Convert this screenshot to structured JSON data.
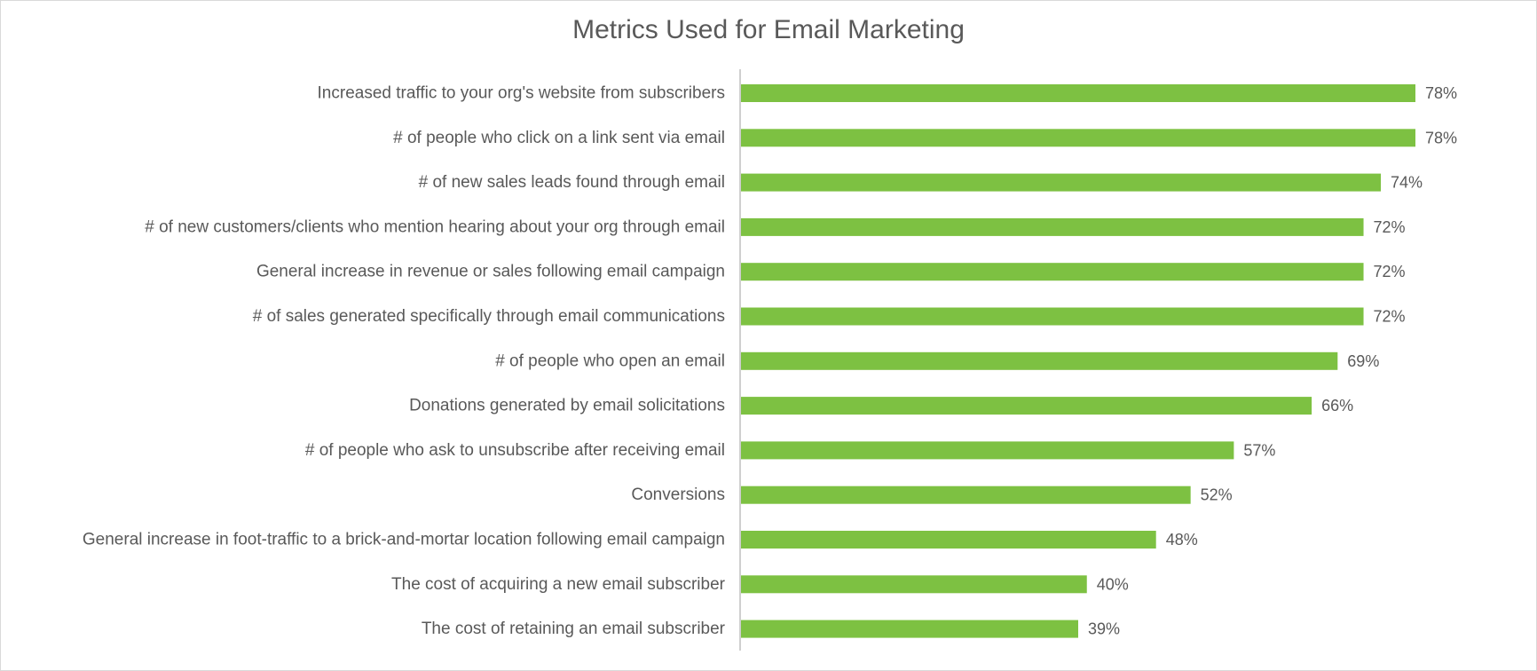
{
  "chart_data": {
    "type": "bar",
    "orientation": "horizontal",
    "title": "Metrics Used for Email Marketing",
    "categories": [
      "Increased traffic to your org's website from subscribers",
      "# of people who click on a link sent via email",
      "# of new sales leads found through email",
      "# of new customers/clients who mention hearing about your org through email",
      "General increase in revenue or sales following email campaign",
      "# of sales generated specifically through email communications",
      "# of people who open an email",
      "Donations generated by email solicitations",
      "# of people who ask to unsubscribe after receiving email",
      "Conversions",
      "General increase in foot-traffic to a brick-and-mortar location following email campaign",
      "The cost of acquiring a new email subscriber",
      "The cost of retaining an email subscriber"
    ],
    "values": [
      78,
      78,
      74,
      72,
      72,
      72,
      69,
      66,
      57,
      52,
      48,
      40,
      39
    ],
    "value_labels": [
      "78%",
      "78%",
      "74%",
      "72%",
      "72%",
      "72%",
      "69%",
      "66%",
      "57%",
      "52%",
      "48%",
      "40%",
      "39%"
    ],
    "xlim": [
      0,
      100
    ],
    "bar_color": "#7dc142",
    "grid": false,
    "legend": "none"
  }
}
